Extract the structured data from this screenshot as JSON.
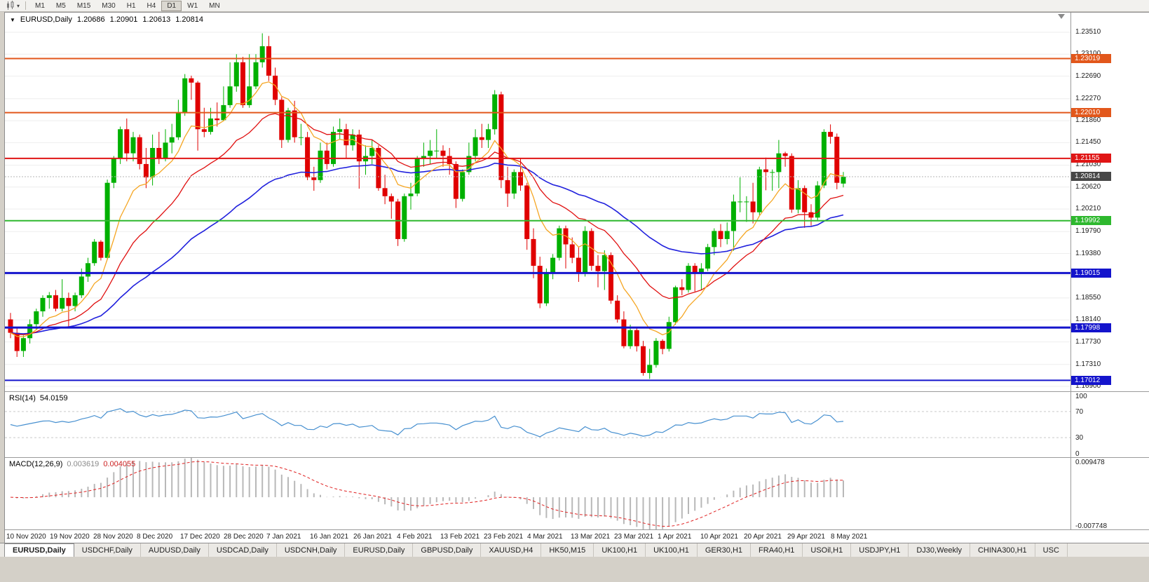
{
  "icons": {
    "symbol_dropdown": "▼",
    "toolbar_caret": "▾"
  },
  "toolbar": {
    "timeframes": [
      "M1",
      "M5",
      "M15",
      "M30",
      "H1",
      "H4",
      "D1",
      "W1",
      "MN"
    ],
    "active_timeframe": "D1"
  },
  "chart_header": {
    "symbol": "EURUSD,Daily",
    "open": "1.20686",
    "high": "1.20901",
    "low": "1.20613",
    "close": "1.20814"
  },
  "price_axis": {
    "min": 1.169,
    "max": 1.2351,
    "labels": [
      "1.23510",
      "1.23100",
      "1.22690",
      "1.22270",
      "1.21860",
      "1.21450",
      "1.21030",
      "1.20620",
      "1.20210",
      "1.19790",
      "1.19380",
      "1.18970",
      "1.18550",
      "1.18140",
      "1.17730",
      "1.17310",
      "1.16900"
    ]
  },
  "hlines": [
    {
      "label": "1.23019",
      "value": 1.23019,
      "color": "#e2571b",
      "line_width": 2
    },
    {
      "label": "1.22010",
      "value": 1.2201,
      "color": "#e2571b",
      "line_width": 2
    },
    {
      "label": "1.21155",
      "value": 1.21155,
      "color": "#e01515",
      "line_width": 2
    },
    {
      "label": "1.19992",
      "value": 1.19992,
      "color": "#2eb82e",
      "line_width": 2
    },
    {
      "label": "1.19015",
      "value": 1.19015,
      "color": "#1414cc",
      "line_width": 3
    },
    {
      "label": "1.17998",
      "value": 1.17998,
      "color": "#1414cc",
      "line_width": 3
    },
    {
      "label": "1.17012",
      "value": 1.17012,
      "color": "#1414cc",
      "line_width": 2
    }
  ],
  "current_price": {
    "label": "1.20814",
    "value": 1.20814,
    "line_color": "#b4b4b4",
    "box_color": "#474747"
  },
  "rsi_panel": {
    "title": "RSI(14)",
    "value": "54.0159",
    "line_color": "#4790d0",
    "levels": [
      {
        "label": "100",
        "value": 100
      },
      {
        "label": "70",
        "value": 70
      },
      {
        "label": "30",
        "value": 30
      },
      {
        "label": "0",
        "value": 0
      }
    ]
  },
  "macd_panel": {
    "title": "MACD(12,26,9)",
    "macd_value": "0.003619",
    "signal_value": "0.004055",
    "histogram_color": "#b8b8b8",
    "signal_color": "#e02020",
    "axis_max": 0.009478,
    "axis_min": -0.007748,
    "axis_labels": [
      {
        "label": "0.009478",
        "value": 0.009478
      },
      {
        "label": "-0.007748",
        "value": -0.007748
      }
    ]
  },
  "time_axis": {
    "labels": [
      "10 Nov 2020",
      "19 Nov 2020",
      "28 Nov 2020",
      "8 Dec 2020",
      "17 Dec 2020",
      "28 Dec 2020",
      "7 Jan 2021",
      "16 Jan 2021",
      "26 Jan 2021",
      "4 Feb 2021",
      "13 Feb 2021",
      "23 Feb 2021",
      "4 Mar 2021",
      "13 Mar 2021",
      "23 Mar 2021",
      "1 Apr 2021",
      "10 Apr 2021",
      "20 Apr 2021",
      "29 Apr 2021",
      "8 May 2021"
    ]
  },
  "tabs": {
    "active_index": 0,
    "items": [
      "EURUSD,Daily",
      "USDCHF,Daily",
      "AUDUSD,Daily",
      "USDCAD,Daily",
      "USDCNH,Daily",
      "EURUSD,Daily",
      "GBPUSD,Daily",
      "XAUUSD,H4",
      "HK50,M15",
      "UK100,H1",
      "UK100,H1",
      "GER30,H1",
      "FRA40,H1",
      "USOil,H1",
      "USDJPY,H1",
      "DJ30,Weekly",
      "CHINA300,H1",
      "USC"
    ]
  },
  "chart_data": {
    "type": "candlestick",
    "symbol": "EURUSD",
    "timeframe": "Daily",
    "date_range": "10 Nov 2020 - 11 May 2021",
    "up_color": "#00b000",
    "down_color": "#e00000",
    "moving_averages": [
      {
        "name": "slow-ma",
        "period": 50,
        "color": "#2121dd",
        "width": 1.6
      },
      {
        "name": "medium-ma",
        "period": 21,
        "color": "#e01010",
        "width": 1.3
      },
      {
        "name": "fast-ma",
        "period": 9,
        "color": "#f5a623",
        "width": 1.3
      }
    ],
    "candles": [
      [
        1.1815,
        1.1827,
        1.178,
        1.179
      ],
      [
        1.179,
        1.18,
        1.1745,
        1.1756
      ],
      [
        1.1756,
        1.1785,
        1.1745,
        1.178
      ],
      [
        1.178,
        1.1815,
        1.177,
        1.1806
      ],
      [
        1.1806,
        1.1835,
        1.1796,
        1.183
      ],
      [
        1.183,
        1.186,
        1.182,
        1.1855
      ],
      [
        1.1855,
        1.1866,
        1.1835,
        1.186
      ],
      [
        1.186,
        1.187,
        1.183,
        1.1835
      ],
      [
        1.1835,
        1.189,
        1.183,
        1.1855
      ],
      [
        1.1855,
        1.1865,
        1.18,
        1.184
      ],
      [
        1.184,
        1.1865,
        1.183,
        1.186
      ],
      [
        1.186,
        1.191,
        1.1855,
        1.1895
      ],
      [
        1.1895,
        1.193,
        1.1885,
        1.192
      ],
      [
        1.192,
        1.1965,
        1.1915,
        1.196
      ],
      [
        1.196,
        1.1963,
        1.1925,
        1.193
      ],
      [
        1.193,
        1.2076,
        1.1926,
        1.207
      ],
      [
        1.207,
        1.212,
        1.206,
        1.2115
      ],
      [
        1.2115,
        1.2175,
        1.2105,
        1.217
      ],
      [
        1.217,
        1.219,
        1.211,
        1.2125
      ],
      [
        1.2125,
        1.2165,
        1.211,
        1.2155
      ],
      [
        1.2155,
        1.216,
        1.2095,
        1.2105
      ],
      [
        1.2105,
        1.2135,
        1.206,
        1.208
      ],
      [
        1.208,
        1.216,
        1.2065,
        1.2135
      ],
      [
        1.2135,
        1.2165,
        1.2105,
        1.2115
      ],
      [
        1.2115,
        1.217,
        1.211,
        1.2145
      ],
      [
        1.2145,
        1.218,
        1.2125,
        1.2155
      ],
      [
        1.2155,
        1.2225,
        1.215,
        1.22
      ],
      [
        1.22,
        1.2273,
        1.2195,
        1.2265
      ],
      [
        1.2265,
        1.227,
        1.2225,
        1.2257
      ],
      [
        1.2257,
        1.226,
        1.213,
        1.217
      ],
      [
        1.217,
        1.221,
        1.2155,
        1.2165
      ],
      [
        1.2165,
        1.221,
        1.216,
        1.219
      ],
      [
        1.219,
        1.222,
        1.2175,
        1.2187
      ],
      [
        1.2187,
        1.225,
        1.2185,
        1.2215
      ],
      [
        1.2215,
        1.2295,
        1.221,
        1.225
      ],
      [
        1.225,
        1.231,
        1.224,
        1.2295
      ],
      [
        1.2295,
        1.2305,
        1.221,
        1.2215
      ],
      [
        1.2215,
        1.231,
        1.221,
        1.225
      ],
      [
        1.225,
        1.231,
        1.2245,
        1.2295
      ],
      [
        1.2295,
        1.2349,
        1.2285,
        1.2325
      ],
      [
        1.2325,
        1.2344,
        1.226,
        1.227
      ],
      [
        1.227,
        1.2285,
        1.2215,
        1.2225
      ],
      [
        1.2225,
        1.223,
        1.2135,
        1.215
      ],
      [
        1.215,
        1.221,
        1.2145,
        1.2205
      ],
      [
        1.2205,
        1.2223,
        1.2145,
        1.2155
      ],
      [
        1.2155,
        1.218,
        1.214,
        1.2155
      ],
      [
        1.2155,
        1.2165,
        1.2075,
        1.208
      ],
      [
        1.208,
        1.21,
        1.2055,
        1.2075
      ],
      [
        1.2075,
        1.2145,
        1.207,
        1.213
      ],
      [
        1.213,
        1.2145,
        1.2095,
        1.2105
      ],
      [
        1.2105,
        1.2175,
        1.21,
        1.2165
      ],
      [
        1.2165,
        1.219,
        1.215,
        1.217
      ],
      [
        1.217,
        1.218,
        1.2115,
        1.214
      ],
      [
        1.214,
        1.217,
        1.213,
        1.216
      ],
      [
        1.216,
        1.2169,
        1.2059,
        1.211
      ],
      [
        1.211,
        1.214,
        1.2085,
        1.212
      ],
      [
        1.212,
        1.215,
        1.2105,
        1.2135
      ],
      [
        1.2135,
        1.214,
        1.2055,
        1.206
      ],
      [
        1.206,
        1.2085,
        1.203,
        1.2045
      ],
      [
        1.2045,
        1.205,
        1.2003,
        1.2035
      ],
      [
        1.2035,
        1.204,
        1.1952,
        1.1965
      ],
      [
        1.1965,
        1.205,
        1.196,
        1.2045
      ],
      [
        1.2045,
        1.207,
        1.202,
        1.205
      ],
      [
        1.205,
        1.212,
        1.2045,
        1.2115
      ],
      [
        1.2115,
        1.2145,
        1.21,
        1.212
      ],
      [
        1.212,
        1.215,
        1.2105,
        1.213
      ],
      [
        1.213,
        1.217,
        1.2115,
        1.213
      ],
      [
        1.213,
        1.214,
        1.21,
        1.212
      ],
      [
        1.212,
        1.2135,
        1.2085,
        1.2105
      ],
      [
        1.2105,
        1.211,
        1.2023,
        1.204
      ],
      [
        1.204,
        1.2095,
        1.2035,
        1.209
      ],
      [
        1.209,
        1.2145,
        1.2085,
        1.212
      ],
      [
        1.212,
        1.217,
        1.211,
        1.2155
      ],
      [
        1.2155,
        1.218,
        1.2135,
        1.215
      ],
      [
        1.215,
        1.218,
        1.2135,
        1.217
      ],
      [
        1.217,
        1.2243,
        1.216,
        1.2235
      ],
      [
        1.2235,
        1.224,
        1.206,
        1.2075
      ],
      [
        1.2075,
        1.21,
        1.2025,
        1.205
      ],
      [
        1.205,
        1.2095,
        1.204,
        1.209
      ],
      [
        1.209,
        1.2115,
        1.2055,
        1.2065
      ],
      [
        1.2065,
        1.207,
        1.1945,
        1.1965
      ],
      [
        1.1965,
        1.1985,
        1.1892,
        1.1915
      ],
      [
        1.1915,
        1.1932,
        1.1836,
        1.1845
      ],
      [
        1.1845,
        1.191,
        1.184,
        1.19
      ],
      [
        1.19,
        1.1937,
        1.189,
        1.193
      ],
      [
        1.193,
        1.199,
        1.1925,
        1.1985
      ],
      [
        1.1985,
        1.199,
        1.191,
        1.1955
      ],
      [
        1.1955,
        1.1968,
        1.192,
        1.193
      ],
      [
        1.193,
        1.195,
        1.1885,
        1.19
      ],
      [
        1.19,
        1.1989,
        1.1895,
        1.198
      ],
      [
        1.198,
        1.1985,
        1.1906,
        1.1915
      ],
      [
        1.1915,
        1.1935,
        1.1875,
        1.1905
      ],
      [
        1.1905,
        1.1944,
        1.187,
        1.1935
      ],
      [
        1.1935,
        1.194,
        1.1844,
        1.185
      ],
      [
        1.185,
        1.186,
        1.1809,
        1.1815
      ],
      [
        1.1815,
        1.183,
        1.1761,
        1.1765
      ],
      [
        1.1765,
        1.1805,
        1.176,
        1.1795
      ],
      [
        1.1795,
        1.1798,
        1.1755,
        1.1765
      ],
      [
        1.1765,
        1.1775,
        1.171,
        1.1715
      ],
      [
        1.1715,
        1.176,
        1.1704,
        1.173
      ],
      [
        1.173,
        1.178,
        1.1725,
        1.1775
      ],
      [
        1.1775,
        1.1778,
        1.175,
        1.176
      ],
      [
        1.176,
        1.182,
        1.1755,
        1.181
      ],
      [
        1.181,
        1.1878,
        1.1805,
        1.1875
      ],
      [
        1.1875,
        1.189,
        1.186,
        1.187
      ],
      [
        1.187,
        1.192,
        1.1865,
        1.1915
      ],
      [
        1.1915,
        1.192,
        1.1867,
        1.19
      ],
      [
        1.19,
        1.192,
        1.187,
        1.191
      ],
      [
        1.191,
        1.1956,
        1.1905,
        1.195
      ],
      [
        1.195,
        1.1985,
        1.1935,
        1.198
      ],
      [
        1.198,
        1.1993,
        1.195,
        1.1965
      ],
      [
        1.1965,
        1.1996,
        1.1955,
        1.198
      ],
      [
        1.198,
        1.2048,
        1.1943,
        1.2035
      ],
      [
        1.2035,
        1.208,
        1.2015,
        1.2035
      ],
      [
        1.2035,
        1.2045,
        1.1997,
        1.2035
      ],
      [
        1.2035,
        1.207,
        1.1994,
        1.2015
      ],
      [
        1.2015,
        1.21,
        1.201,
        1.2095
      ],
      [
        1.2095,
        1.2117,
        1.2056,
        1.209
      ],
      [
        1.209,
        1.2095,
        1.2055,
        1.209
      ],
      [
        1.209,
        1.215,
        1.206,
        1.2125
      ],
      [
        1.2125,
        1.2128,
        1.21,
        1.212
      ],
      [
        1.212,
        1.2125,
        1.2014,
        1.202
      ],
      [
        1.202,
        1.2075,
        1.2013,
        1.206
      ],
      [
        1.206,
        1.2065,
        1.1986,
        1.2015
      ],
      [
        1.2015,
        1.203,
        1.199,
        1.2005
      ],
      [
        1.2005,
        1.2073,
        1.2,
        1.2065
      ],
      [
        1.2065,
        1.217,
        1.206,
        1.2165
      ],
      [
        1.2165,
        1.2179,
        1.2143,
        1.2156
      ],
      [
        1.2156,
        1.2162,
        1.2058,
        1.207
      ],
      [
        1.20686,
        1.20901,
        1.20613,
        1.20814
      ]
    ]
  }
}
